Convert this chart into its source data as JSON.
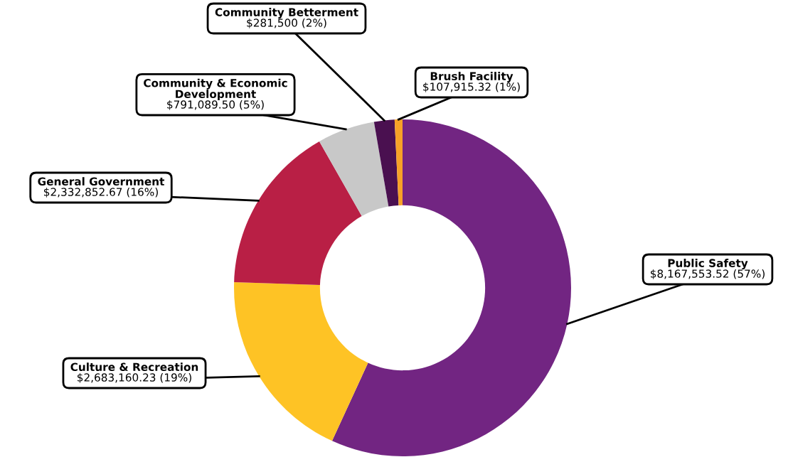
{
  "chart_data": {
    "type": "donut",
    "categories": [
      "Public Safety",
      "Culture & Recreation",
      "General Government",
      "Community & Economic\nDevelopment",
      "Community Betterment",
      "Brush Facility"
    ],
    "values": [
      8167553.52,
      2683160.23,
      2332852.67,
      791089.5,
      281500,
      107915.32
    ],
    "colors": [
      "#722582",
      "#fec325",
      "#b91f45",
      "#c8c8c8",
      "#4a1050",
      "#f7a128"
    ],
    "value_labels": [
      "$8,167,553.52 (57%)",
      "$2,683,160.23 (19%)",
      "$2,332,852.67 (16%)",
      "$791,089.50 (5%)",
      "$281,500 (2%)",
      "$107,915.32 (1%)"
    ],
    "legend": false
  }
}
